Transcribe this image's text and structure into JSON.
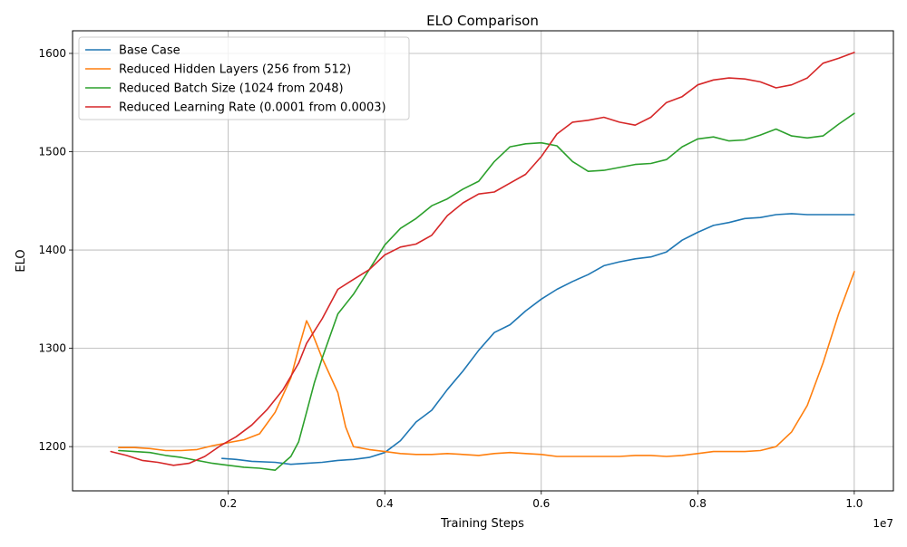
{
  "chart_data": {
    "type": "line",
    "title": "ELO Comparison",
    "xlabel": "Training Steps",
    "ylabel": "ELO",
    "x_offset_text": "1e7",
    "xlim": [
      0.001,
      1.05
    ],
    "ylim": [
      1155,
      1623
    ],
    "x_ticks": [
      0.2,
      0.4,
      0.6,
      0.8,
      1.0
    ],
    "x_tick_labels": [
      "0.2",
      "0.4",
      "0.6",
      "0.8",
      "1.0"
    ],
    "y_ticks": [
      1200,
      1300,
      1400,
      1500,
      1600
    ],
    "y_tick_labels": [
      "1200",
      "1300",
      "1400",
      "1500",
      "1600"
    ],
    "grid": true,
    "legend_position": "top-left",
    "series": [
      {
        "name": "Base Case",
        "color": "#1f77b4",
        "points": [
          [
            0.192,
            1188
          ],
          [
            0.21,
            1187
          ],
          [
            0.23,
            1185
          ],
          [
            0.26,
            1184
          ],
          [
            0.28,
            1182
          ],
          [
            0.3,
            1183
          ],
          [
            0.32,
            1184
          ],
          [
            0.34,
            1186
          ],
          [
            0.36,
            1187
          ],
          [
            0.38,
            1189
          ],
          [
            0.4,
            1194
          ],
          [
            0.42,
            1206
          ],
          [
            0.44,
            1225
          ],
          [
            0.46,
            1237
          ],
          [
            0.48,
            1258
          ],
          [
            0.5,
            1277
          ],
          [
            0.52,
            1298
          ],
          [
            0.54,
            1316
          ],
          [
            0.56,
            1324
          ],
          [
            0.58,
            1338
          ],
          [
            0.6,
            1350
          ],
          [
            0.62,
            1360
          ],
          [
            0.64,
            1368
          ],
          [
            0.66,
            1375
          ],
          [
            0.68,
            1384
          ],
          [
            0.7,
            1388
          ],
          [
            0.72,
            1391
          ],
          [
            0.74,
            1393
          ],
          [
            0.76,
            1398
          ],
          [
            0.78,
            1410
          ],
          [
            0.8,
            1418
          ],
          [
            0.82,
            1425
          ],
          [
            0.84,
            1428
          ],
          [
            0.86,
            1432
          ],
          [
            0.88,
            1433
          ],
          [
            0.9,
            1436
          ],
          [
            0.92,
            1437
          ],
          [
            0.94,
            1436
          ],
          [
            0.96,
            1436
          ],
          [
            0.98,
            1436
          ],
          [
            1.0,
            1436
          ]
        ]
      },
      {
        "name": "Reduced Hidden Layers (256 from 512)",
        "color": "#ff7f0e",
        "points": [
          [
            0.06,
            1199
          ],
          [
            0.08,
            1199
          ],
          [
            0.1,
            1198
          ],
          [
            0.12,
            1196
          ],
          [
            0.14,
            1196
          ],
          [
            0.16,
            1197
          ],
          [
            0.18,
            1201
          ],
          [
            0.2,
            1204
          ],
          [
            0.22,
            1207
          ],
          [
            0.24,
            1213
          ],
          [
            0.26,
            1235
          ],
          [
            0.28,
            1270
          ],
          [
            0.29,
            1300
          ],
          [
            0.3,
            1328
          ],
          [
            0.305,
            1320
          ],
          [
            0.32,
            1290
          ],
          [
            0.34,
            1255
          ],
          [
            0.35,
            1220
          ],
          [
            0.36,
            1200
          ],
          [
            0.38,
            1197
          ],
          [
            0.4,
            1195
          ],
          [
            0.42,
            1193
          ],
          [
            0.44,
            1192
          ],
          [
            0.46,
            1192
          ],
          [
            0.48,
            1193
          ],
          [
            0.5,
            1192
          ],
          [
            0.52,
            1191
          ],
          [
            0.54,
            1193
          ],
          [
            0.56,
            1194
          ],
          [
            0.58,
            1193
          ],
          [
            0.6,
            1192
          ],
          [
            0.62,
            1190
          ],
          [
            0.64,
            1190
          ],
          [
            0.66,
            1190
          ],
          [
            0.68,
            1190
          ],
          [
            0.7,
            1190
          ],
          [
            0.72,
            1191
          ],
          [
            0.74,
            1191
          ],
          [
            0.76,
            1190
          ],
          [
            0.78,
            1191
          ],
          [
            0.8,
            1193
          ],
          [
            0.82,
            1195
          ],
          [
            0.84,
            1195
          ],
          [
            0.86,
            1195
          ],
          [
            0.88,
            1196
          ],
          [
            0.9,
            1200
          ],
          [
            0.92,
            1215
          ],
          [
            0.94,
            1242
          ],
          [
            0.96,
            1285
          ],
          [
            0.98,
            1335
          ],
          [
            1.0,
            1378
          ]
        ]
      },
      {
        "name": "Reduced Batch Size (1024 from 2048)",
        "color": "#2ca02c",
        "points": [
          [
            0.06,
            1196
          ],
          [
            0.08,
            1195
          ],
          [
            0.1,
            1194
          ],
          [
            0.12,
            1191
          ],
          [
            0.14,
            1189
          ],
          [
            0.16,
            1186
          ],
          [
            0.18,
            1183
          ],
          [
            0.2,
            1181
          ],
          [
            0.22,
            1179
          ],
          [
            0.24,
            1178
          ],
          [
            0.26,
            1176
          ],
          [
            0.28,
            1190
          ],
          [
            0.29,
            1205
          ],
          [
            0.3,
            1235
          ],
          [
            0.31,
            1265
          ],
          [
            0.32,
            1290
          ],
          [
            0.34,
            1335
          ],
          [
            0.36,
            1355
          ],
          [
            0.38,
            1380
          ],
          [
            0.4,
            1405
          ],
          [
            0.42,
            1422
          ],
          [
            0.44,
            1432
          ],
          [
            0.46,
            1445
          ],
          [
            0.48,
            1452
          ],
          [
            0.5,
            1462
          ],
          [
            0.52,
            1470
          ],
          [
            0.54,
            1490
          ],
          [
            0.56,
            1505
          ],
          [
            0.58,
            1508
          ],
          [
            0.6,
            1509
          ],
          [
            0.62,
            1506
          ],
          [
            0.64,
            1490
          ],
          [
            0.66,
            1480
          ],
          [
            0.68,
            1481
          ],
          [
            0.7,
            1484
          ],
          [
            0.72,
            1487
          ],
          [
            0.74,
            1488
          ],
          [
            0.76,
            1492
          ],
          [
            0.78,
            1505
          ],
          [
            0.8,
            1513
          ],
          [
            0.82,
            1515
          ],
          [
            0.84,
            1511
          ],
          [
            0.86,
            1512
          ],
          [
            0.88,
            1517
          ],
          [
            0.9,
            1523
          ],
          [
            0.92,
            1516
          ],
          [
            0.94,
            1514
          ],
          [
            0.96,
            1516
          ],
          [
            0.98,
            1528
          ],
          [
            1.0,
            1539
          ]
        ]
      },
      {
        "name": "Reduced Learning Rate (0.0001 from 0.0003)",
        "color": "#d62728",
        "points": [
          [
            0.05,
            1195
          ],
          [
            0.07,
            1191
          ],
          [
            0.09,
            1186
          ],
          [
            0.11,
            1184
          ],
          [
            0.13,
            1181
          ],
          [
            0.15,
            1183
          ],
          [
            0.17,
            1190
          ],
          [
            0.19,
            1201
          ],
          [
            0.21,
            1210
          ],
          [
            0.23,
            1222
          ],
          [
            0.25,
            1238
          ],
          [
            0.27,
            1258
          ],
          [
            0.29,
            1285
          ],
          [
            0.3,
            1305
          ],
          [
            0.32,
            1330
          ],
          [
            0.34,
            1360
          ],
          [
            0.36,
            1370
          ],
          [
            0.38,
            1380
          ],
          [
            0.4,
            1395
          ],
          [
            0.42,
            1403
          ],
          [
            0.44,
            1406
          ],
          [
            0.46,
            1415
          ],
          [
            0.48,
            1435
          ],
          [
            0.5,
            1448
          ],
          [
            0.52,
            1457
          ],
          [
            0.54,
            1459
          ],
          [
            0.56,
            1468
          ],
          [
            0.58,
            1477
          ],
          [
            0.6,
            1495
          ],
          [
            0.62,
            1518
          ],
          [
            0.64,
            1530
          ],
          [
            0.66,
            1532
          ],
          [
            0.68,
            1535
          ],
          [
            0.7,
            1530
          ],
          [
            0.72,
            1527
          ],
          [
            0.74,
            1535
          ],
          [
            0.76,
            1550
          ],
          [
            0.78,
            1556
          ],
          [
            0.8,
            1568
          ],
          [
            0.82,
            1573
          ],
          [
            0.84,
            1575
          ],
          [
            0.86,
            1574
          ],
          [
            0.88,
            1571
          ],
          [
            0.9,
            1565
          ],
          [
            0.92,
            1568
          ],
          [
            0.94,
            1575
          ],
          [
            0.96,
            1590
          ],
          [
            0.98,
            1595
          ],
          [
            1.0,
            1601
          ]
        ]
      }
    ]
  }
}
